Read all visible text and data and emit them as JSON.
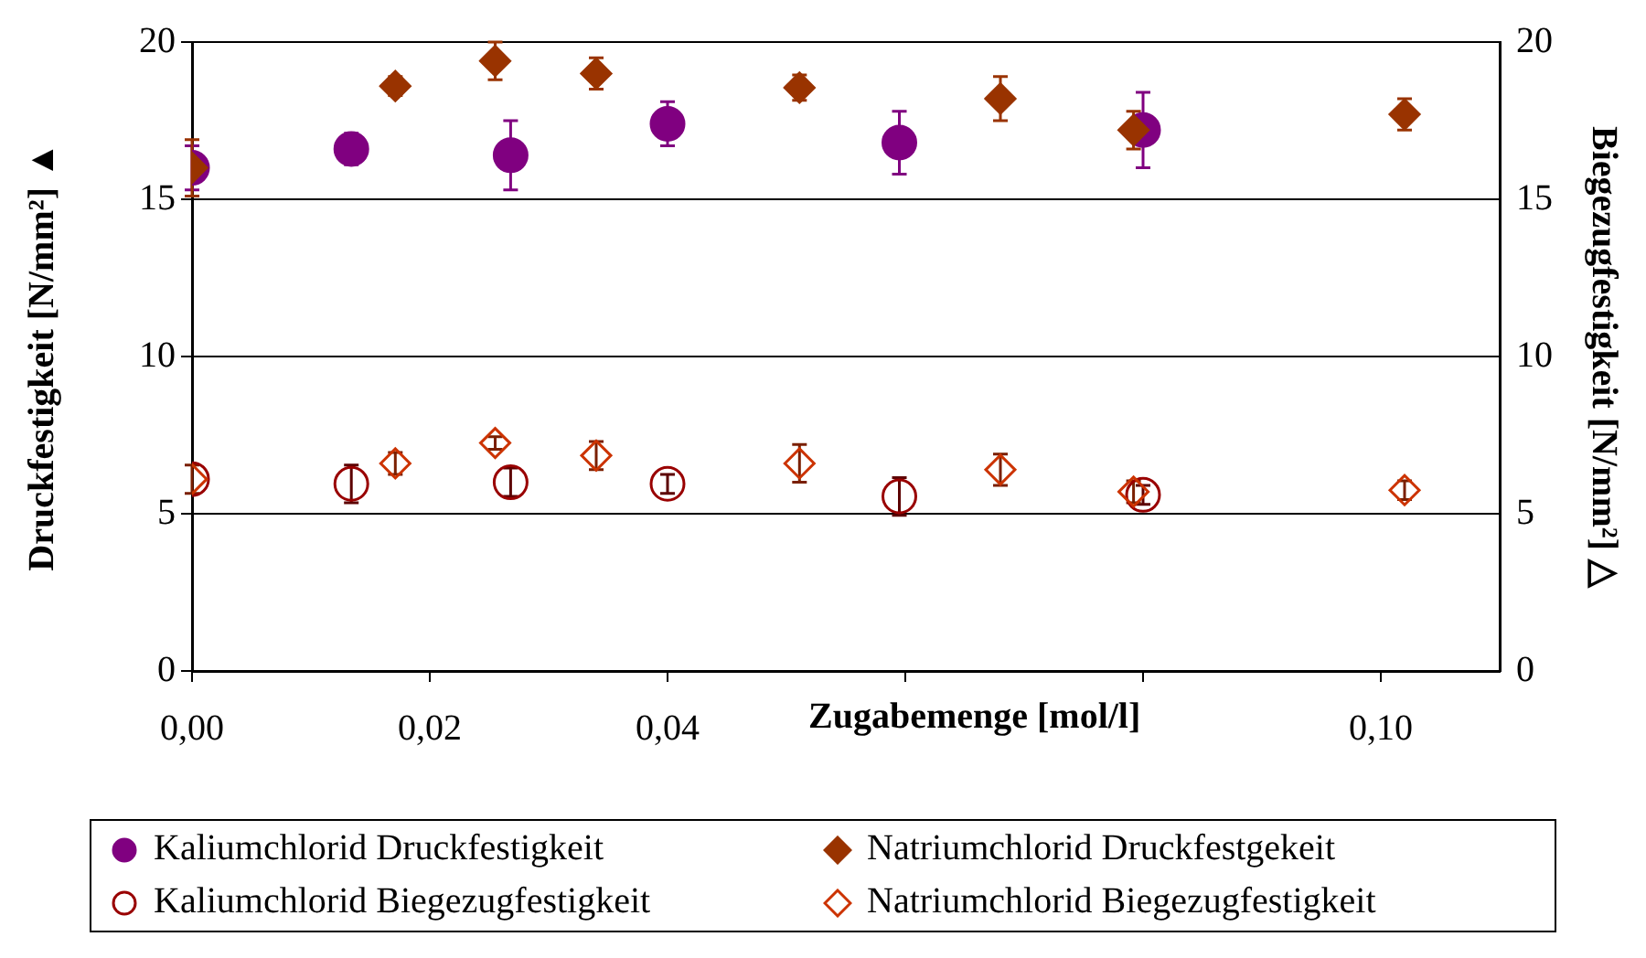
{
  "chart_data": {
    "type": "scatter",
    "xlabel": "Zugabemenge [mol/l]",
    "ylabel": "Druckfestigkeit [N/mm²] ▲",
    "y2label": "Biegezugfestigkeit [N/mm²] △",
    "xlim": [
      0,
      0.11
    ],
    "xticks": [
      {
        "value": 0,
        "label": "0,00"
      },
      {
        "value": 0.02,
        "label": "0,02"
      },
      {
        "value": 0.04,
        "label": "0,04"
      },
      {
        "value": 0.06,
        "label": null
      },
      {
        "value": 0.08,
        "label": null
      },
      {
        "value": 0.1,
        "label": "0,10"
      }
    ],
    "ylim": [
      0,
      20
    ],
    "yticks": [
      0,
      5,
      10,
      15,
      20
    ],
    "y2lim": [
      0,
      20
    ],
    "y2ticks": [
      0,
      5,
      10,
      15,
      20
    ],
    "grid": "y",
    "legend": "bottom",
    "series": [
      {
        "name": "Kaliumchlorid Druckfestigkeit",
        "color": "#800080",
        "marker": "circle",
        "x": [
          0,
          0.0134,
          0.0268,
          0.04,
          0.0595,
          0.08
        ],
        "values": [
          16.0,
          16.6,
          16.4,
          17.4,
          16.8,
          17.2
        ],
        "errors": [
          0.7,
          0.5,
          1.1,
          0.7,
          1.0,
          1.2
        ]
      },
      {
        "name": "Natriumchlorid Druckfestgekeit",
        "color": "#993300",
        "marker": "diamond",
        "x": [
          0,
          0.0171,
          0.0255,
          0.034,
          0.0511,
          0.068,
          0.0792,
          0.102
        ],
        "values": [
          16.0,
          18.6,
          19.4,
          19.0,
          18.55,
          18.2,
          17.2,
          17.7
        ],
        "errors": [
          0.9,
          0.3,
          0.6,
          0.5,
          0.4,
          0.7,
          0.6,
          0.5
        ]
      },
      {
        "name": "Kaliumchlorid Biegezugfestigkeit",
        "color": "#990000",
        "marker": "circle",
        "axis": "y2",
        "x": [
          0,
          0.0134,
          0.0268,
          0.04,
          0.0595,
          0.08
        ],
        "values": [
          6.1,
          5.95,
          6.0,
          5.95,
          5.55,
          5.6
        ],
        "errors": [
          null,
          0.6,
          0.45,
          0.3,
          0.6,
          0.3
        ]
      },
      {
        "name": "Natriumchlorid Biegezugfestigkeit",
        "color": "#cc3300",
        "marker": "diamond",
        "axis": "y2",
        "x": [
          0,
          0.0171,
          0.0255,
          0.034,
          0.0511,
          0.068,
          0.0792,
          0.102
        ],
        "values": [
          6.1,
          6.6,
          7.25,
          6.85,
          6.6,
          6.4,
          5.7,
          5.75
        ],
        "errors": [
          0.45,
          0.35,
          0.2,
          0.45,
          0.6,
          0.5,
          0.35,
          0.3
        ]
      }
    ]
  }
}
